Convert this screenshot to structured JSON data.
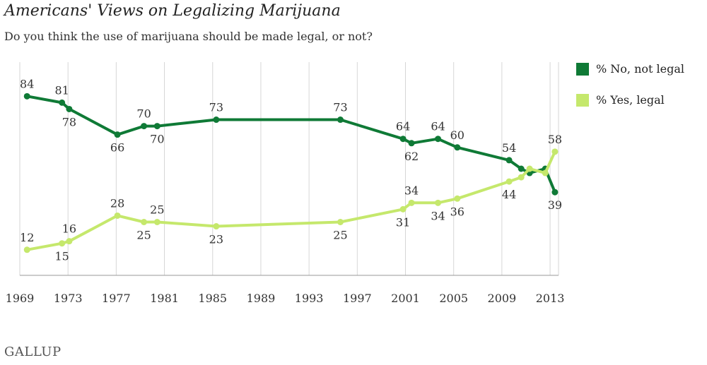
{
  "title": "Americans' Views on Legalizing Marijuana",
  "subtitle": "Do you think the use of marijuana should be made legal, or not?",
  "brand": "GALLUP",
  "colors": {
    "no": "#0f7a36",
    "yes": "#c5e86c",
    "grid": "#d6d6d6"
  },
  "chart_data": {
    "type": "line",
    "xlim": [
      1969,
      2013.7
    ],
    "ylim": [
      0,
      100
    ],
    "x_ticks": [
      "1969",
      "1973",
      "1977",
      "1981",
      "1985",
      "1989",
      "1993",
      "1997",
      "2001",
      "2005",
      "2009",
      "2013"
    ],
    "grid": "vertical",
    "legend_position": "right",
    "series": [
      {
        "name": "% No, not legal",
        "key": "no",
        "x": [
          1969.6,
          1972.5,
          1973.1,
          1977.1,
          1979.3,
          1980.4,
          1985.3,
          1995.6,
          2000.8,
          2001.5,
          2003.7,
          2005.3,
          2009.6,
          2010.6,
          2011.3,
          2012.6,
          2013.4
        ],
        "y": [
          84,
          81,
          78,
          66,
          70,
          70,
          73,
          73,
          64,
          62,
          64,
          60,
          54,
          50,
          48,
          50,
          39
        ],
        "labels": [
          {
            "i": 0,
            "text": "84",
            "pos": "above"
          },
          {
            "i": 1,
            "text": "81",
            "pos": "above"
          },
          {
            "i": 2,
            "text": "78",
            "pos": "below"
          },
          {
            "i": 3,
            "text": "66",
            "pos": "below"
          },
          {
            "i": 4,
            "text": "70",
            "pos": "above"
          },
          {
            "i": 5,
            "text": "70",
            "pos": "below"
          },
          {
            "i": 6,
            "text": "73",
            "pos": "above"
          },
          {
            "i": 7,
            "text": "73",
            "pos": "above"
          },
          {
            "i": 8,
            "text": "64",
            "pos": "above"
          },
          {
            "i": 9,
            "text": "62",
            "pos": "below"
          },
          {
            "i": 10,
            "text": "64",
            "pos": "above"
          },
          {
            "i": 11,
            "text": "60",
            "pos": "above"
          },
          {
            "i": 12,
            "text": "54",
            "pos": "above"
          },
          {
            "i": 16,
            "text": "39",
            "pos": "below"
          }
        ]
      },
      {
        "name": "% Yes, legal",
        "key": "yes",
        "x": [
          1969.6,
          1972.5,
          1973.1,
          1977.1,
          1979.3,
          1980.4,
          1985.3,
          1995.6,
          2000.8,
          2001.5,
          2003.7,
          2005.3,
          2009.6,
          2010.6,
          2011.3,
          2012.6,
          2013.4
        ],
        "y": [
          12,
          15,
          16,
          28,
          25,
          25,
          23,
          25,
          31,
          34,
          34,
          36,
          44,
          46,
          50,
          48,
          58
        ],
        "labels": [
          {
            "i": 0,
            "text": "12",
            "pos": "above"
          },
          {
            "i": 1,
            "text": "15",
            "pos": "below"
          },
          {
            "i": 2,
            "text": "16",
            "pos": "above"
          },
          {
            "i": 3,
            "text": "28",
            "pos": "above"
          },
          {
            "i": 4,
            "text": "25",
            "pos": "below"
          },
          {
            "i": 5,
            "text": "25",
            "pos": "above"
          },
          {
            "i": 6,
            "text": "23",
            "pos": "below"
          },
          {
            "i": 7,
            "text": "25",
            "pos": "below"
          },
          {
            "i": 8,
            "text": "31",
            "pos": "below"
          },
          {
            "i": 9,
            "text": "34",
            "pos": "above"
          },
          {
            "i": 10,
            "text": "34",
            "pos": "below"
          },
          {
            "i": 11,
            "text": "36",
            "pos": "below"
          },
          {
            "i": 12,
            "text": "44",
            "pos": "below"
          },
          {
            "i": 16,
            "text": "58",
            "pos": "above"
          }
        ]
      }
    ]
  }
}
